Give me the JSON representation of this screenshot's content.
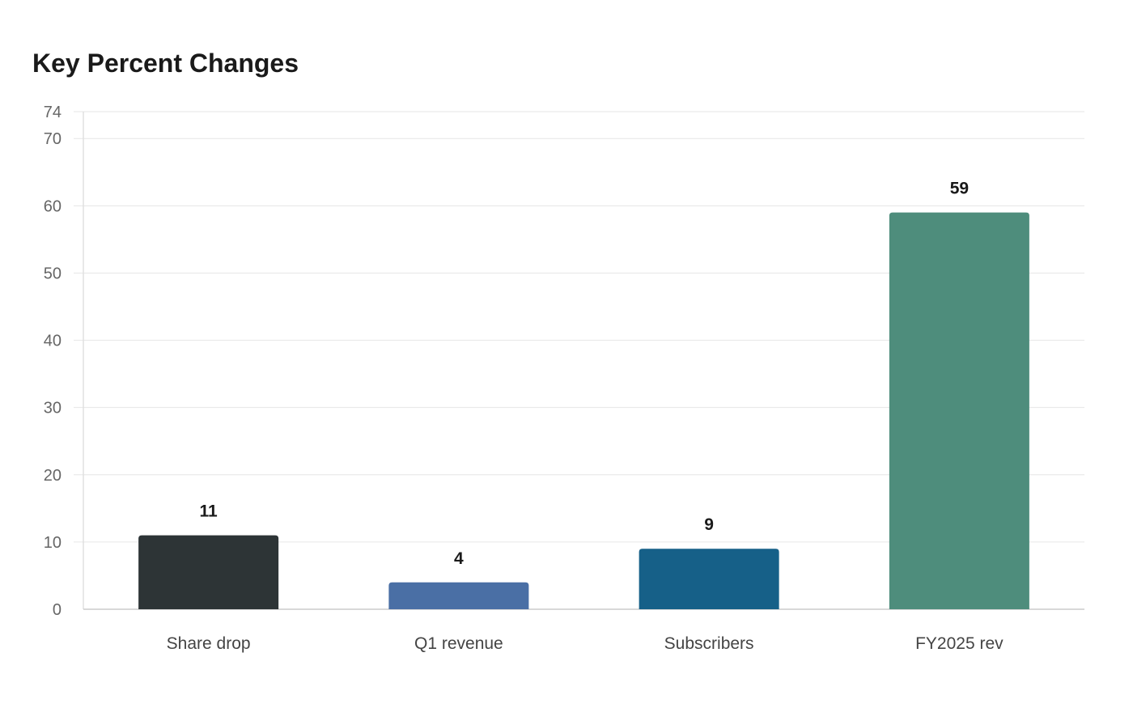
{
  "chart_data": {
    "type": "bar",
    "title": "Key Percent Changes",
    "xlabel": "",
    "ylabel": "",
    "categories": [
      "Share drop",
      "Q1 revenue",
      "Subscribers",
      "FY2025 rev"
    ],
    "values": [
      11,
      4,
      9,
      59
    ],
    "value_labels": [
      "11",
      "4",
      "9",
      "59"
    ],
    "colors": [
      "#2d3436",
      "#4a6fa5",
      "#166088",
      "#4e8d7c"
    ],
    "ylim": [
      0,
      74
    ],
    "yticks": [
      0,
      10,
      20,
      30,
      40,
      50,
      60,
      70,
      74
    ],
    "ytick_labels": [
      "0",
      "10",
      "20",
      "30",
      "40",
      "50",
      "60",
      "70",
      "74"
    ],
    "grid": true,
    "legend": "none"
  }
}
